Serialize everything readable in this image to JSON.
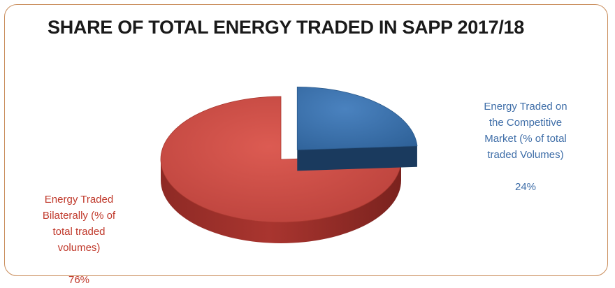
{
  "chart_data": {
    "type": "pie",
    "style": "3d-exploded",
    "title": "SHARE OF TOTAL ENERGY TRADED IN SAPP 2017/18",
    "slices": [
      {
        "label": "Energy Traded Bilaterally (% of total traded volumes)",
        "label_lines": "Energy Traded\nBilaterally (% of\ntotal traded\nvolumes)",
        "value": 76,
        "value_text": "76%",
        "color": "#c94b44"
      },
      {
        "label": "Energy Traded on the Competitive Market (% of total traded Volumes)",
        "label_lines": "Energy Traded on\nthe Competitive\nMarket (% of total\ntraded Volumes)",
        "value": 24,
        "value_text": "24%",
        "color": "#3a6fa6"
      }
    ]
  }
}
